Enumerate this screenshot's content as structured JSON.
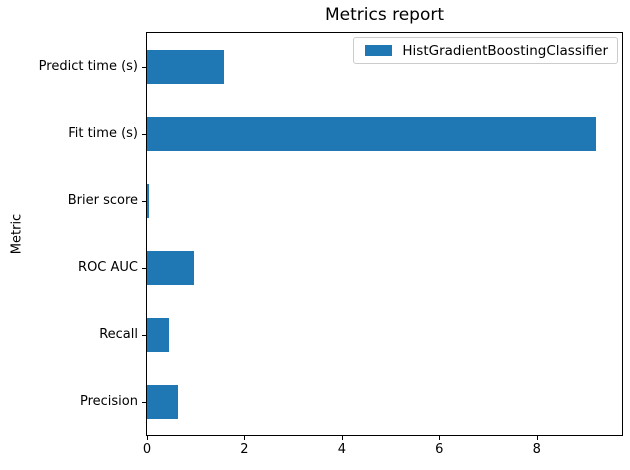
{
  "chart_data": {
    "type": "bar",
    "orientation": "horizontal",
    "title": "Metrics report",
    "xlabel": "",
    "ylabel": "Metric",
    "categories_top_to_bottom": [
      "Predict time (s)",
      "Fit time (s)",
      "Brier score",
      "ROC AUC",
      "Recall",
      "Precision"
    ],
    "series": [
      {
        "name": "HistGradientBoostingClassifier",
        "color": "#1f77b4",
        "values_top_to_bottom": [
          1.58,
          9.21,
          0.04,
          0.97,
          0.46,
          0.64
        ]
      }
    ],
    "xlim": [
      0,
      9.75
    ],
    "xticks": [
      0,
      2,
      4,
      6,
      8
    ],
    "xtick_labels": [
      "0",
      "2",
      "4",
      "6",
      "8"
    ],
    "grid": false,
    "legend_position": "upper right",
    "colors": {
      "bar": "#1f77b4",
      "axes_frame": "#000000",
      "legend_border": "#cccccc",
      "background": "#ffffff",
      "text": "#000000"
    }
  }
}
